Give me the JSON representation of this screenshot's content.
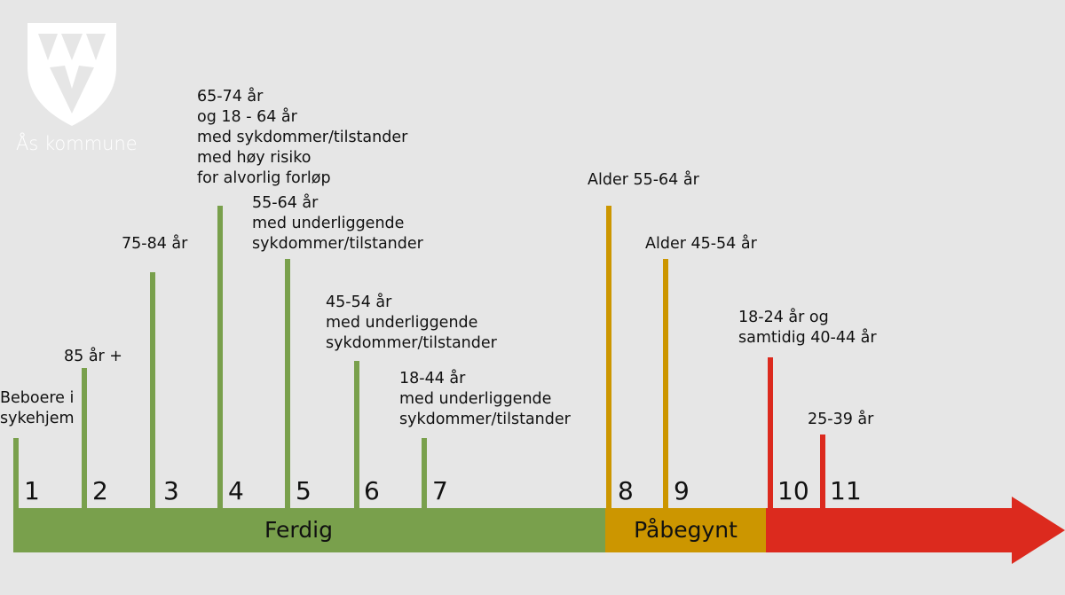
{
  "logo": {
    "name": "Ås kommune"
  },
  "colors": {
    "background": "#e6e6e6",
    "done": "#79a04c",
    "started": "#cc9600",
    "upcoming": "#dc2a1e"
  },
  "steps": [
    {
      "number": "1",
      "label": "Beboere i\nsykehjem",
      "status": "done"
    },
    {
      "number": "2",
      "label": "85 år +",
      "status": "done"
    },
    {
      "number": "3",
      "label": "75-84 år",
      "status": "done"
    },
    {
      "number": "4",
      "label": "65-74 år\nog 18 - 64 år\nmed sykdommer/tilstander\nmed høy risiko\nfor alvorlig forløp",
      "status": "done"
    },
    {
      "number": "5",
      "label": "55-64 år\nmed underliggende\nsykdommer/tilstander",
      "status": "done"
    },
    {
      "number": "6",
      "label": "45-54 år\nmed underliggende\nsykdommer/tilstander",
      "status": "done"
    },
    {
      "number": "7",
      "label": "18-44 år\nmed underliggende\nsykdommer/tilstander",
      "status": "done"
    },
    {
      "number": "8",
      "label": "Alder 55-64 år",
      "status": "started"
    },
    {
      "number": "9",
      "label": "Alder 45-54 år",
      "status": "started"
    },
    {
      "number": "10",
      "label": "18-24 år og\nsamtidig 40-44 år",
      "status": "upcoming"
    },
    {
      "number": "11",
      "label": "25-39 år",
      "status": "upcoming"
    }
  ],
  "phases": {
    "done": "Ferdig",
    "started": "Påbegynt",
    "upcoming": ""
  }
}
